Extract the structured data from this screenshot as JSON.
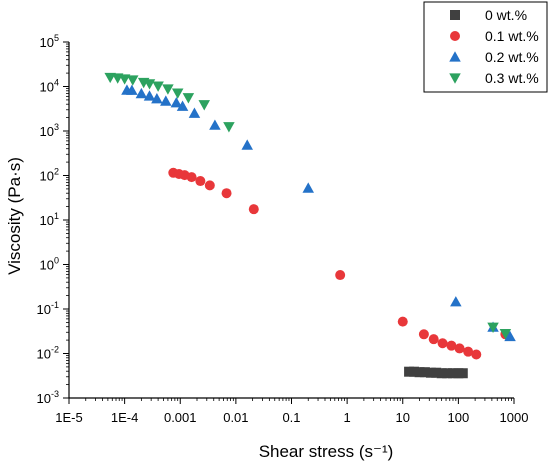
{
  "chart_data": {
    "type": "scatter",
    "title": "",
    "xlabel": "Shear stress (s⁻¹)",
    "ylabel": "Viscosity (Pa·s)",
    "xscale": "log",
    "yscale": "log",
    "xlim": [
      1e-05,
      1000
    ],
    "ylim": [
      0.001,
      100000
    ],
    "x_ticks": [
      {
        "value": 1e-05,
        "label": "1E-5"
      },
      {
        "value": 0.0001,
        "label": "1E-4"
      },
      {
        "value": 0.001,
        "label": "0.001"
      },
      {
        "value": 0.01,
        "label": "0.01"
      },
      {
        "value": 0.1,
        "label": "0.1"
      },
      {
        "value": 1,
        "label": "1"
      },
      {
        "value": 10,
        "label": "10"
      },
      {
        "value": 100,
        "label": "100"
      },
      {
        "value": 1000,
        "label": "1000"
      }
    ],
    "y_ticks": [
      {
        "value": 0.001,
        "label_base": "10",
        "label_exp": "-3"
      },
      {
        "value": 0.01,
        "label_base": "10",
        "label_exp": "-2"
      },
      {
        "value": 0.1,
        "label_base": "10",
        "label_exp": "-1"
      },
      {
        "value": 1,
        "label_base": "10",
        "label_exp": "0"
      },
      {
        "value": 10,
        "label_base": "10",
        "label_exp": "1"
      },
      {
        "value": 100,
        "label_base": "10",
        "label_exp": "2"
      },
      {
        "value": 1000,
        "label_base": "10",
        "label_exp": "3"
      },
      {
        "value": 10000,
        "label_base": "10",
        "label_exp": "4"
      },
      {
        "value": 100000,
        "label_base": "10",
        "label_exp": "5"
      }
    ],
    "grid": false,
    "legend_position": "top-right",
    "series": [
      {
        "name": "0 wt.%",
        "color": "#404040",
        "marker": "square",
        "points": [
          {
            "x": 13,
            "y": 0.0039
          },
          {
            "x": 16,
            "y": 0.0039
          },
          {
            "x": 20,
            "y": 0.0038
          },
          {
            "x": 25,
            "y": 0.0038
          },
          {
            "x": 32,
            "y": 0.0037
          },
          {
            "x": 40,
            "y": 0.0037
          },
          {
            "x": 50,
            "y": 0.0036
          },
          {
            "x": 63,
            "y": 0.0036
          },
          {
            "x": 80,
            "y": 0.0036
          },
          {
            "x": 100,
            "y": 0.0036
          },
          {
            "x": 120,
            "y": 0.0036
          }
        ]
      },
      {
        "name": "0.1 wt.%",
        "color": "#e8373a",
        "marker": "circle",
        "points": [
          {
            "x": 0.00075,
            "y": 115
          },
          {
            "x": 0.00095,
            "y": 108
          },
          {
            "x": 0.0012,
            "y": 102
          },
          {
            "x": 0.0016,
            "y": 92
          },
          {
            "x": 0.0023,
            "y": 75
          },
          {
            "x": 0.0034,
            "y": 60
          },
          {
            "x": 0.0068,
            "y": 40
          },
          {
            "x": 0.021,
            "y": 17.5
          },
          {
            "x": 0.75,
            "y": 0.58
          },
          {
            "x": 10,
            "y": 0.052
          },
          {
            "x": 24,
            "y": 0.027
          },
          {
            "x": 36,
            "y": 0.021
          },
          {
            "x": 52,
            "y": 0.017
          },
          {
            "x": 75,
            "y": 0.015
          },
          {
            "x": 105,
            "y": 0.013
          },
          {
            "x": 150,
            "y": 0.011
          },
          {
            "x": 210,
            "y": 0.0095
          },
          {
            "x": 700,
            "y": 0.027
          }
        ]
      },
      {
        "name": "0.2 wt.%",
        "color": "#2472c8",
        "marker": "triangle-up",
        "points": [
          {
            "x": 0.00011,
            "y": 8300
          },
          {
            "x": 0.000135,
            "y": 8200
          },
          {
            "x": 0.0002,
            "y": 6900
          },
          {
            "x": 0.00028,
            "y": 6100
          },
          {
            "x": 0.00038,
            "y": 5300
          },
          {
            "x": 0.00055,
            "y": 4700
          },
          {
            "x": 0.00085,
            "y": 4300
          },
          {
            "x": 0.0011,
            "y": 3600
          },
          {
            "x": 0.0018,
            "y": 2500
          },
          {
            "x": 0.0042,
            "y": 1350
          },
          {
            "x": 0.016,
            "y": 480
          },
          {
            "x": 0.2,
            "y": 52
          },
          {
            "x": 90,
            "y": 0.145
          },
          {
            "x": 420,
            "y": 0.039
          },
          {
            "x": 850,
            "y": 0.024
          }
        ]
      },
      {
        "name": "0.3 wt.%",
        "color": "#2ca25f",
        "marker": "triangle-down",
        "points": [
          {
            "x": 5.5e-05,
            "y": 16000
          },
          {
            "x": 7.5e-05,
            "y": 15500
          },
          {
            "x": 0.0001,
            "y": 14800
          },
          {
            "x": 0.00014,
            "y": 14000
          },
          {
            "x": 0.00022,
            "y": 12300
          },
          {
            "x": 0.00028,
            "y": 11500
          },
          {
            "x": 0.0004,
            "y": 10200
          },
          {
            "x": 0.0006,
            "y": 8800
          },
          {
            "x": 0.0009,
            "y": 7100
          },
          {
            "x": 0.0014,
            "y": 5600
          },
          {
            "x": 0.0027,
            "y": 3900
          },
          {
            "x": 0.0075,
            "y": 1250
          },
          {
            "x": 420,
            "y": 0.039
          },
          {
            "x": 700,
            "y": 0.028
          }
        ]
      }
    ]
  }
}
